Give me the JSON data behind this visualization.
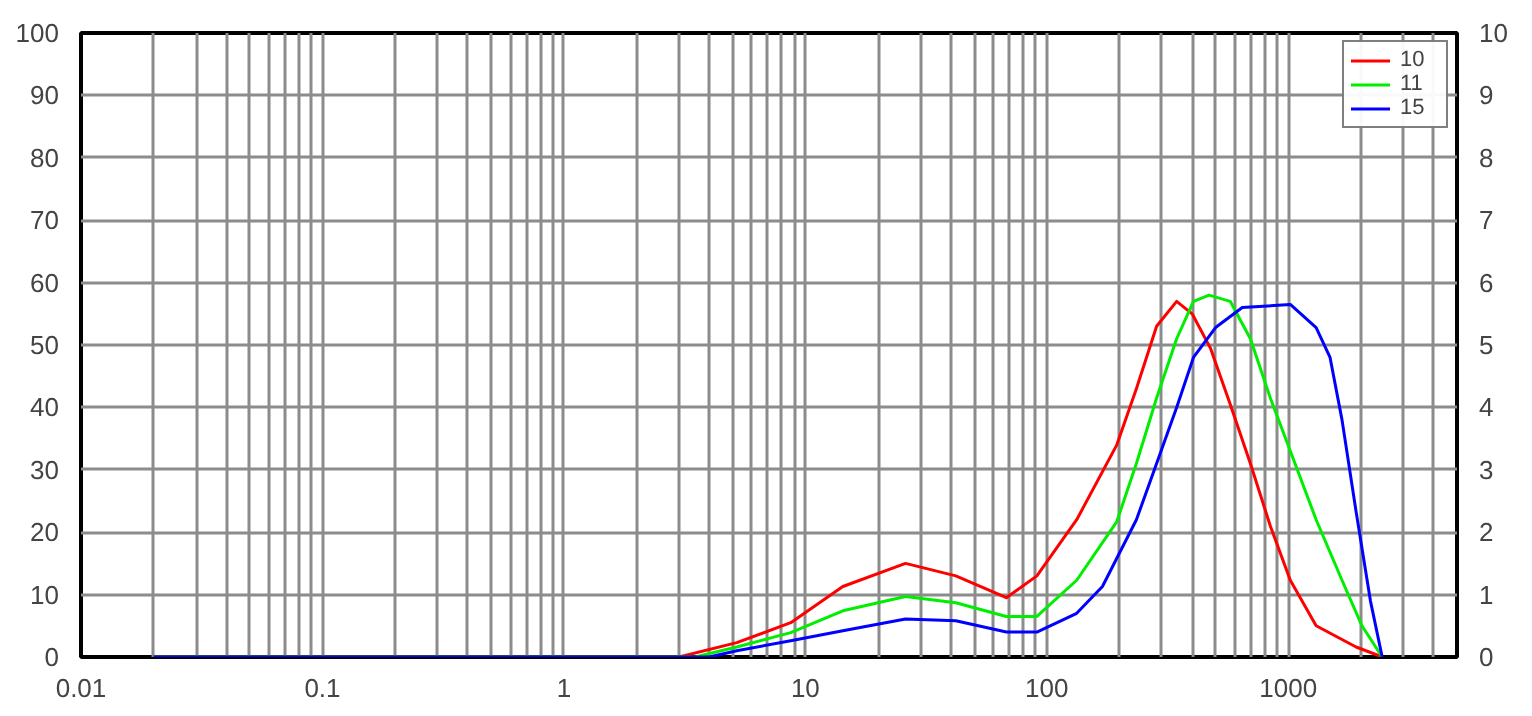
{
  "chart_data": {
    "type": "line",
    "log": "x",
    "grid": true,
    "legend": "top right",
    "marker": "none",
    "line_style": "solid",
    "xlim": [
      0.01,
      5000
    ],
    "xticks": [
      0.01,
      0.1,
      1,
      10,
      100,
      1000
    ],
    "ylim": [
      0,
      100
    ],
    "yticks": [
      0,
      10,
      20,
      30,
      40,
      50,
      60,
      70,
      80,
      90,
      100
    ],
    "y2lim": [
      0,
      10
    ],
    "y2ticks": [
      0,
      1,
      2,
      3,
      4,
      5,
      6,
      7,
      8,
      9,
      10
    ],
    "series": [
      {
        "name": "10",
        "color": "#ff0000",
        "x": [
          0.02,
          3,
          5.2,
          8.7,
          14.3,
          26,
          42,
          68,
          91,
          133,
          195,
          235,
          285,
          345,
          400,
          476,
          575,
          697,
          843,
          1020,
          1305,
          1910,
          2450
        ],
        "values": [
          0,
          0,
          2.3,
          5.5,
          11.3,
          15,
          13,
          9.5,
          13,
          22,
          34,
          43,
          53,
          57,
          55,
          49.5,
          40.5,
          31,
          21,
          12.3,
          5,
          1.6,
          0
        ]
      },
      {
        "name": "11",
        "color": "#00ee00",
        "x": [
          0.02,
          3.5,
          5.2,
          8.7,
          14.3,
          26,
          42,
          68,
          91,
          133,
          195,
          235,
          285,
          345,
          405,
          470,
          575,
          697,
          843,
          1020,
          1305,
          1670,
          2020,
          2450
        ],
        "values": [
          0,
          0,
          1.6,
          3.9,
          7.4,
          9.7,
          8.7,
          6.5,
          6.5,
          12.3,
          21.7,
          31,
          41.5,
          51,
          57,
          58,
          57,
          51,
          41.5,
          33,
          22,
          12.3,
          5,
          0
        ]
      },
      {
        "name": "15",
        "color": "#0000ff",
        "x": [
          0.02,
          4,
          5.2,
          8.7,
          14.3,
          26,
          42,
          68,
          91,
          133,
          170,
          235,
          285,
          345,
          405,
          500,
          645,
          1020,
          1305,
          1490,
          1670,
          1910,
          2190,
          2450
        ],
        "values": [
          0,
          0,
          1,
          2.6,
          4.2,
          6.1,
          5.8,
          4,
          4,
          7,
          11.3,
          22,
          31,
          40,
          48,
          52.8,
          56,
          56.5,
          52.8,
          48,
          38,
          23.3,
          9,
          0
        ]
      }
    ]
  }
}
